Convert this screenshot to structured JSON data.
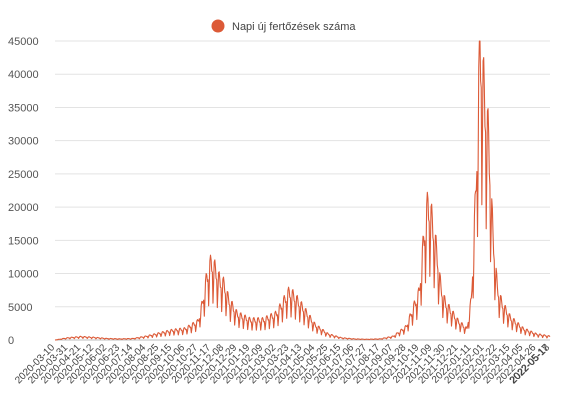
{
  "colors": {
    "series": "#dc5a37",
    "grid": "#e3e3e3",
    "axis_text": "#555555",
    "background": "#ffffff"
  },
  "chart_data": {
    "type": "line",
    "title": "",
    "xlabel": "",
    "ylabel": "",
    "ylim": [
      0,
      45000
    ],
    "yticks": [
      0,
      5000,
      10000,
      15000,
      20000,
      25000,
      30000,
      35000,
      40000,
      45000
    ],
    "grid": "horizontal",
    "legend_position": "top-center",
    "x_tick_labels": [
      "2020-03-10",
      "2020-03-31",
      "2020-04-21",
      "2020-05-12",
      "2020-06-02",
      "2020-06-23",
      "2020-07-14",
      "2020-08-04",
      "2020-08-25",
      "2020-09-15",
      "2020-10-06",
      "2020-10-27",
      "2020-11-17",
      "2020-12-08",
      "2020-12-29",
      "2021-01-19",
      "2021-02-09",
      "2021-03-02",
      "2021-03-23",
      "2021-04-13",
      "2021-05-04",
      "2021-05-25",
      "2021-06-15",
      "2021-07-06",
      "2021-07-27",
      "2021-08-17",
      "2021-09-07",
      "2021-09-28",
      "2021-10-19",
      "2021-11-09",
      "2021-11-30",
      "2021-12-21",
      "2022-01-11",
      "2022-02-01",
      "2022-02-22",
      "2022-03-15",
      "2022-04-05",
      "2022-04-26",
      "2022-05-17",
      "2022-05-18"
    ],
    "series": [
      {
        "name": "Napi új fertőzések száma",
        "x": [
          "2020-03-10",
          "2020-03-31",
          "2020-04-21",
          "2020-05-12",
          "2020-06-02",
          "2020-06-23",
          "2020-07-14",
          "2020-08-04",
          "2020-08-25",
          "2020-09-15",
          "2020-10-06",
          "2020-10-27",
          "2020-11-03",
          "2020-11-10",
          "2020-11-17",
          "2020-11-24",
          "2020-12-01",
          "2020-12-08",
          "2020-12-15",
          "2020-12-22",
          "2020-12-29",
          "2021-01-19",
          "2021-02-09",
          "2021-03-02",
          "2021-03-16",
          "2021-03-23",
          "2021-03-30",
          "2021-04-13",
          "2021-05-04",
          "2021-05-25",
          "2021-06-15",
          "2021-07-06",
          "2021-07-27",
          "2021-08-17",
          "2021-09-07",
          "2021-09-28",
          "2021-10-19",
          "2021-10-26",
          "2021-11-02",
          "2021-11-09",
          "2021-11-16",
          "2021-11-23",
          "2021-11-30",
          "2021-12-21",
          "2022-01-04",
          "2022-01-11",
          "2022-01-18",
          "2022-01-25",
          "2022-02-01",
          "2022-02-08",
          "2022-02-15",
          "2022-02-22",
          "2022-03-01",
          "2022-03-15",
          "2022-04-05",
          "2022-04-26",
          "2022-05-18"
        ],
        "y": [
          0,
          300,
          450,
          350,
          200,
          150,
          200,
          500,
          900,
          1300,
          1500,
          2500,
          5000,
          8500,
          10500,
          9500,
          8000,
          7500,
          5500,
          4500,
          3500,
          2700,
          2700,
          3500,
          5500,
          6500,
          6000,
          4500,
          2000,
          800,
          300,
          150,
          100,
          150,
          500,
          1800,
          6500,
          13500,
          18500,
          16000,
          12000,
          7000,
          5000,
          2500,
          1500,
          5500,
          19500,
          40000,
          33000,
          27000,
          14000,
          7000,
          5000,
          3000,
          1500,
          800,
          500
        ]
      }
    ]
  }
}
